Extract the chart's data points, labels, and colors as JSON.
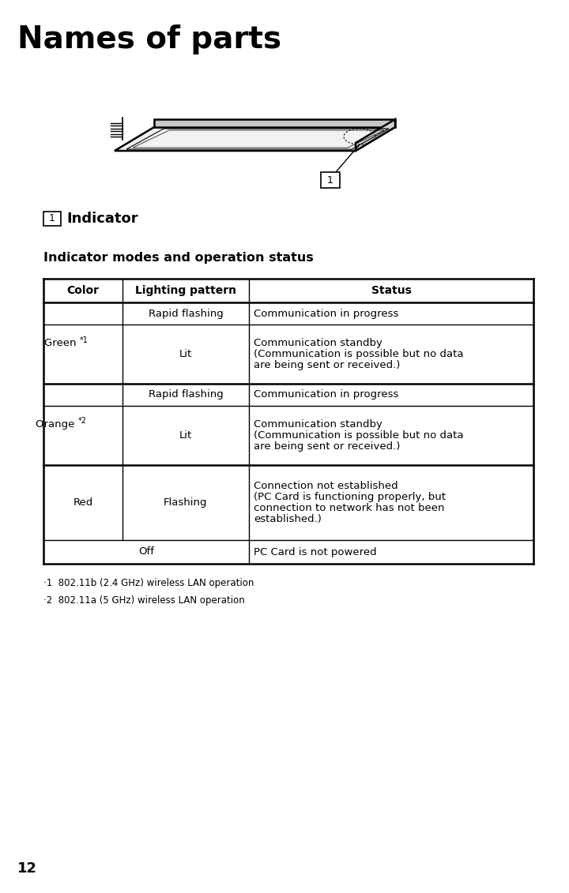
{
  "title": "Names of parts",
  "page_number": "12",
  "indicator_label": "Indicator",
  "table_heading": "Indicator modes and operation status",
  "col_headers": [
    "Color",
    "Lighting pattern",
    "Status"
  ],
  "footnote1": "·1  802.11b (2.4 GHz) wireless LAN operation",
  "footnote2": "·2  802.11a (5 GHz) wireless LAN operation",
  "bg_color": "#ffffff",
  "text_color": "#000000"
}
